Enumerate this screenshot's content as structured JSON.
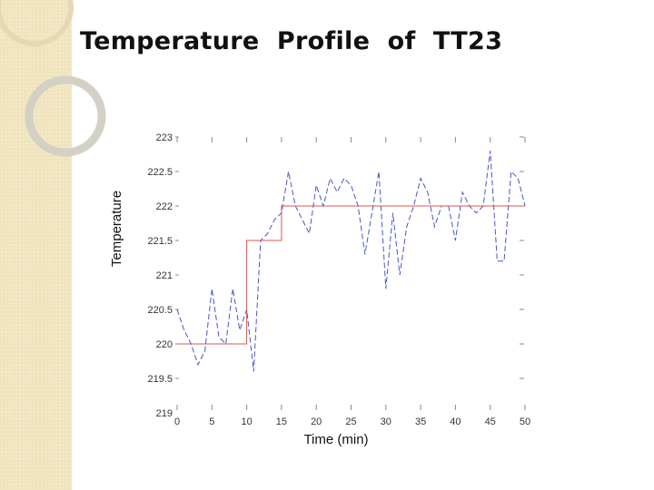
{
  "slide": {
    "title": "Temperature  Profile  of  TT23"
  },
  "chart_data": {
    "type": "line",
    "title": "",
    "xlabel": "Time (min)",
    "ylabel": "Temperature",
    "xlim": [
      0,
      50
    ],
    "ylim": [
      219,
      223
    ],
    "xticks": [
      0,
      5,
      10,
      15,
      20,
      25,
      30,
      35,
      40,
      45,
      50
    ],
    "yticks": [
      219,
      219.5,
      220,
      220.5,
      221,
      221.5,
      222,
      222.5,
      223
    ],
    "grid": false,
    "series": [
      {
        "style": "dashed",
        "color": "#4a55c8",
        "x": [
          0,
          1,
          2,
          3,
          4,
          5,
          6,
          7,
          8,
          9,
          10,
          11,
          12,
          13,
          14,
          15,
          16,
          17,
          18,
          19,
          20,
          21,
          22,
          23,
          24,
          25,
          26,
          27,
          28,
          29,
          30,
          31,
          32,
          33,
          34,
          35,
          36,
          37,
          38,
          39,
          40,
          41,
          42,
          43,
          44,
          45,
          46,
          47,
          48,
          49,
          50
        ],
        "y": [
          220.5,
          220.2,
          220.0,
          219.7,
          219.9,
          220.8,
          220.1,
          220.0,
          220.8,
          220.2,
          220.5,
          219.6,
          221.5,
          221.6,
          221.8,
          221.9,
          222.5,
          222.0,
          221.8,
          221.6,
          222.3,
          222.0,
          222.4,
          222.2,
          222.4,
          222.3,
          222.0,
          221.3,
          221.9,
          222.5,
          220.8,
          221.9,
          221.0,
          221.7,
          222.0,
          222.4,
          222.2,
          221.7,
          222.0,
          222.0,
          221.5,
          222.2,
          222.0,
          221.9,
          222.0,
          222.8,
          221.2,
          221.2,
          222.5,
          222.4,
          222.0
        ]
      },
      {
        "style": "solid",
        "color": "#d9574f",
        "x": [
          0,
          10,
          10,
          15,
          15,
          50
        ],
        "y": [
          220,
          220,
          221.5,
          221.5,
          222,
          222
        ]
      }
    ]
  }
}
